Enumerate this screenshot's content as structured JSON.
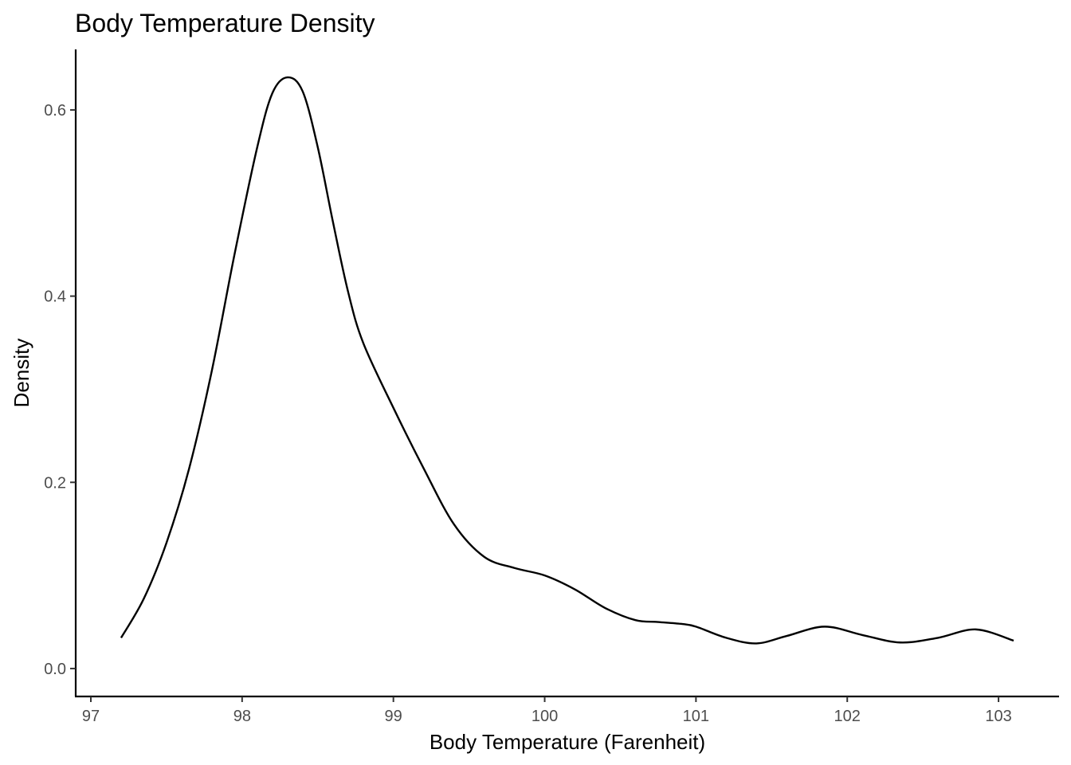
{
  "chart_data": {
    "type": "line",
    "title": "Body Temperature Density",
    "xlabel": "Body Temperature (Farenheit)",
    "ylabel": "Density",
    "xlim": [
      96.9,
      103.4
    ],
    "ylim": [
      -0.03,
      0.665
    ],
    "x_ticks": [
      97,
      98,
      99,
      100,
      101,
      102,
      103
    ],
    "x_tick_labels": [
      "97",
      "98",
      "99",
      "100",
      "101",
      "102",
      "103"
    ],
    "y_ticks": [
      0.0,
      0.2,
      0.4,
      0.6
    ],
    "y_tick_labels": [
      "0.0",
      "0.2",
      "0.4",
      "0.6"
    ],
    "grid": false,
    "line_color": "#000000",
    "series": [
      {
        "x": [
          97.2,
          97.35,
          97.5,
          97.65,
          97.8,
          97.95,
          98.1,
          98.2,
          98.3,
          98.4,
          98.5,
          98.6,
          98.7,
          98.8,
          99.0,
          99.2,
          99.4,
          99.6,
          99.8,
          100.0,
          100.2,
          100.4,
          100.6,
          100.75,
          100.9,
          101.0,
          101.2,
          101.4,
          101.6,
          101.85,
          102.1,
          102.35,
          102.6,
          102.85,
          103.1
        ],
        "y": [
          0.033,
          0.075,
          0.135,
          0.215,
          0.32,
          0.445,
          0.56,
          0.618,
          0.635,
          0.62,
          0.56,
          0.48,
          0.405,
          0.35,
          0.28,
          0.215,
          0.155,
          0.12,
          0.108,
          0.1,
          0.085,
          0.065,
          0.052,
          0.05,
          0.048,
          0.045,
          0.033,
          0.027,
          0.035,
          0.045,
          0.036,
          0.028,
          0.033,
          0.042,
          0.03
        ]
      }
    ]
  }
}
